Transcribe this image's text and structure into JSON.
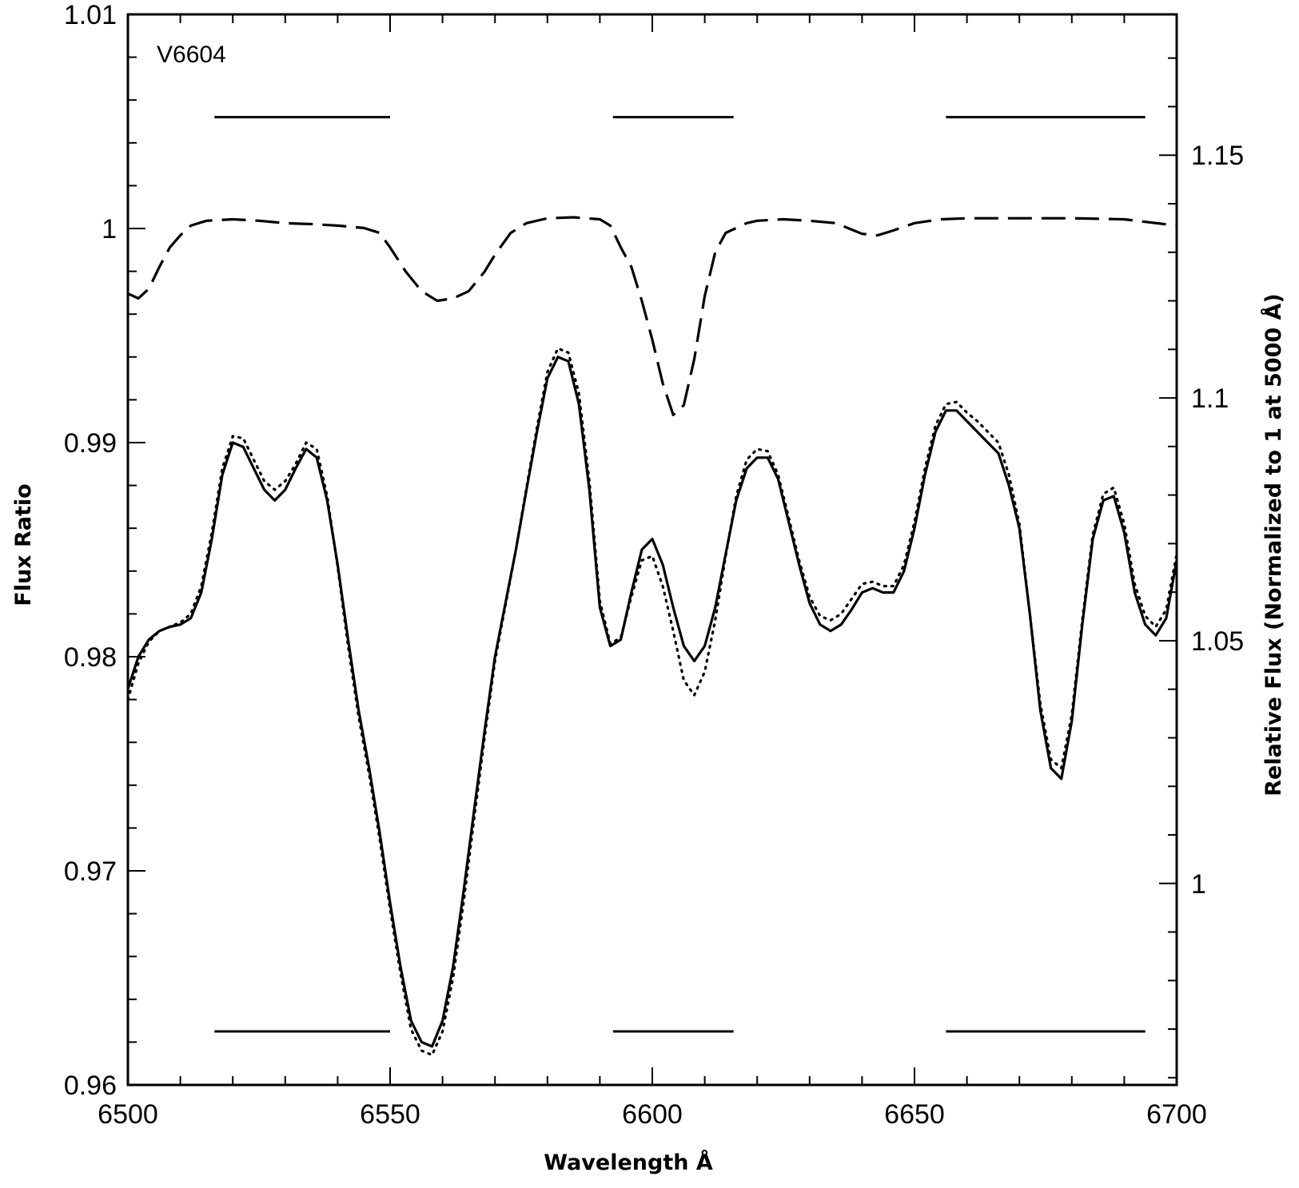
{
  "chart_data": {
    "type": "line",
    "annotation": "V6604",
    "xlabel": "Wavelength Å",
    "ylabel": "Flux Ratio",
    "y2label": "Relative Flux (Normalized to 1 at 5000 Å)",
    "xlim": [
      6500,
      6700
    ],
    "ylim": [
      0.96,
      1.01
    ],
    "y2lim": [
      0.9585,
      1.179
    ],
    "xticks": [
      6500,
      6550,
      6600,
      6650,
      6700
    ],
    "xtick_labels": [
      "6500",
      "6550",
      "6600",
      "6650",
      "6700"
    ],
    "yticks": [
      0.96,
      0.97,
      0.98,
      0.99,
      1.0,
      1.01
    ],
    "ytick_labels": [
      "0.96",
      "0.97",
      "0.98",
      "0.99",
      "1",
      "1.01"
    ],
    "y2ticks": [
      1.0,
      1.05,
      1.1,
      1.15
    ],
    "y2tick_labels": [
      "1",
      "1.05",
      "1.1",
      "1.15"
    ],
    "grid": false,
    "band_markers": {
      "bands": [
        [
          6516.5,
          6550
        ],
        [
          6592.5,
          6615.5
        ],
        [
          6656,
          6694
        ]
      ],
      "y_top": 1.0052,
      "y_bottom": 0.9625
    },
    "series": [
      {
        "style": "dashed",
        "axis": "right",
        "x": [
          6500,
          6502,
          6504,
          6506,
          6508,
          6510,
          6512,
          6515,
          6520,
          6525,
          6530,
          6535,
          6540,
          6545,
          6548,
          6550,
          6553,
          6556,
          6559,
          6562,
          6565,
          6568,
          6570,
          6573,
          6576,
          6580,
          6585,
          6590,
          6592,
          6594,
          6596,
          6598,
          6600,
          6602,
          6604,
          6606,
          6608,
          6610,
          6612,
          6614,
          6616,
          6618,
          6620,
          6625,
          6630,
          6635,
          6640,
          6643,
          6646,
          6650,
          6655,
          6660,
          6670,
          6680,
          6690,
          6700
        ],
        "y": [
          1.1215,
          1.1205,
          1.1225,
          1.127,
          1.131,
          1.1335,
          1.1355,
          1.1365,
          1.1368,
          1.1365,
          1.136,
          1.1358,
          1.1355,
          1.135,
          1.134,
          1.131,
          1.126,
          1.122,
          1.12,
          1.1205,
          1.122,
          1.126,
          1.1295,
          1.134,
          1.136,
          1.137,
          1.1372,
          1.1368,
          1.1355,
          1.131,
          1.127,
          1.12,
          1.112,
          1.103,
          1.0965,
          1.0985,
          1.108,
          1.121,
          1.13,
          1.134,
          1.135,
          1.136,
          1.1365,
          1.1368,
          1.1365,
          1.136,
          1.1338,
          1.1335,
          1.1345,
          1.136,
          1.1368,
          1.137,
          1.137,
          1.137,
          1.1368,
          1.1355
        ]
      },
      {
        "style": "solid",
        "axis": "left",
        "x": [
          6500,
          6502,
          6504,
          6506,
          6508,
          6510,
          6512,
          6514,
          6516,
          6518,
          6520,
          6522,
          6524,
          6526,
          6528,
          6530,
          6532,
          6534,
          6536,
          6538,
          6540,
          6542,
          6544,
          6546,
          6548,
          6550,
          6552,
          6554,
          6556,
          6558,
          6560,
          6562,
          6564,
          6566,
          6568,
          6570,
          6572,
          6574,
          6576,
          6578,
          6580,
          6582,
          6584,
          6586,
          6588,
          6590,
          6592,
          6594,
          6596,
          6598,
          6600,
          6602,
          6604,
          6606,
          6608,
          6610,
          6612,
          6614,
          6616,
          6618,
          6620,
          6622,
          6624,
          6626,
          6628,
          6630,
          6632,
          6634,
          6636,
          6638,
          6640,
          6642,
          6644,
          6646,
          6648,
          6650,
          6652,
          6654,
          6656,
          6658,
          6660,
          6662,
          6664,
          6666,
          6668,
          6670,
          6672,
          6674,
          6676,
          6678,
          6680,
          6682,
          6684,
          6686,
          6688,
          6690,
          6692,
          6694,
          6696,
          6698,
          6700
        ],
        "y": [
          0.9785,
          0.98,
          0.9808,
          0.9812,
          0.9814,
          0.9815,
          0.9818,
          0.983,
          0.9855,
          0.9885,
          0.99,
          0.9898,
          0.9888,
          0.9878,
          0.9873,
          0.9878,
          0.9888,
          0.9897,
          0.9893,
          0.9873,
          0.9843,
          0.9808,
          0.9775,
          0.9748,
          0.9718,
          0.9685,
          0.9655,
          0.963,
          0.962,
          0.9618,
          0.963,
          0.9655,
          0.969,
          0.9728,
          0.9765,
          0.98,
          0.9825,
          0.985,
          0.9878,
          0.9905,
          0.993,
          0.994,
          0.9938,
          0.9918,
          0.9878,
          0.9823,
          0.9805,
          0.9808,
          0.983,
          0.985,
          0.9855,
          0.9843,
          0.9823,
          0.9805,
          0.9798,
          0.9805,
          0.9823,
          0.9848,
          0.9873,
          0.9888,
          0.9893,
          0.9893,
          0.9883,
          0.9863,
          0.9843,
          0.9825,
          0.9815,
          0.9812,
          0.9815,
          0.9822,
          0.983,
          0.9832,
          0.983,
          0.983,
          0.984,
          0.986,
          0.9885,
          0.9905,
          0.9915,
          0.9915,
          0.991,
          0.9905,
          0.99,
          0.9895,
          0.988,
          0.986,
          0.982,
          0.9775,
          0.9748,
          0.9743,
          0.977,
          0.9815,
          0.9855,
          0.9873,
          0.9875,
          0.9858,
          0.983,
          0.9815,
          0.981,
          0.9818,
          0.9845
        ]
      },
      {
        "style": "dotted",
        "axis": "left",
        "x": [
          6500,
          6502,
          6504,
          6506,
          6508,
          6510,
          6512,
          6514,
          6516,
          6518,
          6520,
          6522,
          6524,
          6526,
          6528,
          6530,
          6532,
          6534,
          6536,
          6538,
          6540,
          6542,
          6544,
          6546,
          6548,
          6550,
          6552,
          6554,
          6556,
          6558,
          6560,
          6562,
          6564,
          6566,
          6568,
          6570,
          6572,
          6574,
          6576,
          6578,
          6580,
          6582,
          6584,
          6586,
          6588,
          6590,
          6592,
          6594,
          6596,
          6598,
          6600,
          6602,
          6604,
          6606,
          6608,
          6610,
          6612,
          6614,
          6616,
          6618,
          6620,
          6622,
          6624,
          6626,
          6628,
          6630,
          6632,
          6634,
          6636,
          6638,
          6640,
          6642,
          6644,
          6646,
          6648,
          6650,
          6652,
          6654,
          6656,
          6658,
          6660,
          6662,
          6664,
          6666,
          6668,
          6670,
          6672,
          6674,
          6676,
          6678,
          6680,
          6682,
          6684,
          6686,
          6688,
          6690,
          6692,
          6694,
          6696,
          6698,
          6700
        ],
        "y": [
          0.978,
          0.9797,
          0.9807,
          0.9812,
          0.9814,
          0.9816,
          0.982,
          0.9833,
          0.9858,
          0.9888,
          0.9903,
          0.9902,
          0.9892,
          0.9882,
          0.9878,
          0.9882,
          0.989,
          0.99,
          0.9897,
          0.9875,
          0.9842,
          0.9805,
          0.9772,
          0.9745,
          0.9715,
          0.9682,
          0.9652,
          0.9626,
          0.9616,
          0.9614,
          0.9625,
          0.965,
          0.9685,
          0.9724,
          0.9762,
          0.9798,
          0.9824,
          0.985,
          0.9879,
          0.9907,
          0.9933,
          0.9944,
          0.9942,
          0.9923,
          0.9882,
          0.9826,
          0.9806,
          0.9809,
          0.9828,
          0.9845,
          0.9847,
          0.9833,
          0.9812,
          0.9789,
          0.9782,
          0.9793,
          0.9817,
          0.9847,
          0.9875,
          0.9892,
          0.9897,
          0.9896,
          0.9885,
          0.9865,
          0.9845,
          0.9828,
          0.9819,
          0.9817,
          0.982,
          0.9827,
          0.9834,
          0.9835,
          0.9833,
          0.9833,
          0.9843,
          0.9863,
          0.9888,
          0.9908,
          0.9918,
          0.9919,
          0.9914,
          0.991,
          0.9905,
          0.99,
          0.9885,
          0.9862,
          0.982,
          0.9778,
          0.9752,
          0.9748,
          0.9773,
          0.9817,
          0.9857,
          0.9876,
          0.9879,
          0.9862,
          0.9834,
          0.9819,
          0.9814,
          0.9822,
          0.9848
        ]
      }
    ]
  }
}
